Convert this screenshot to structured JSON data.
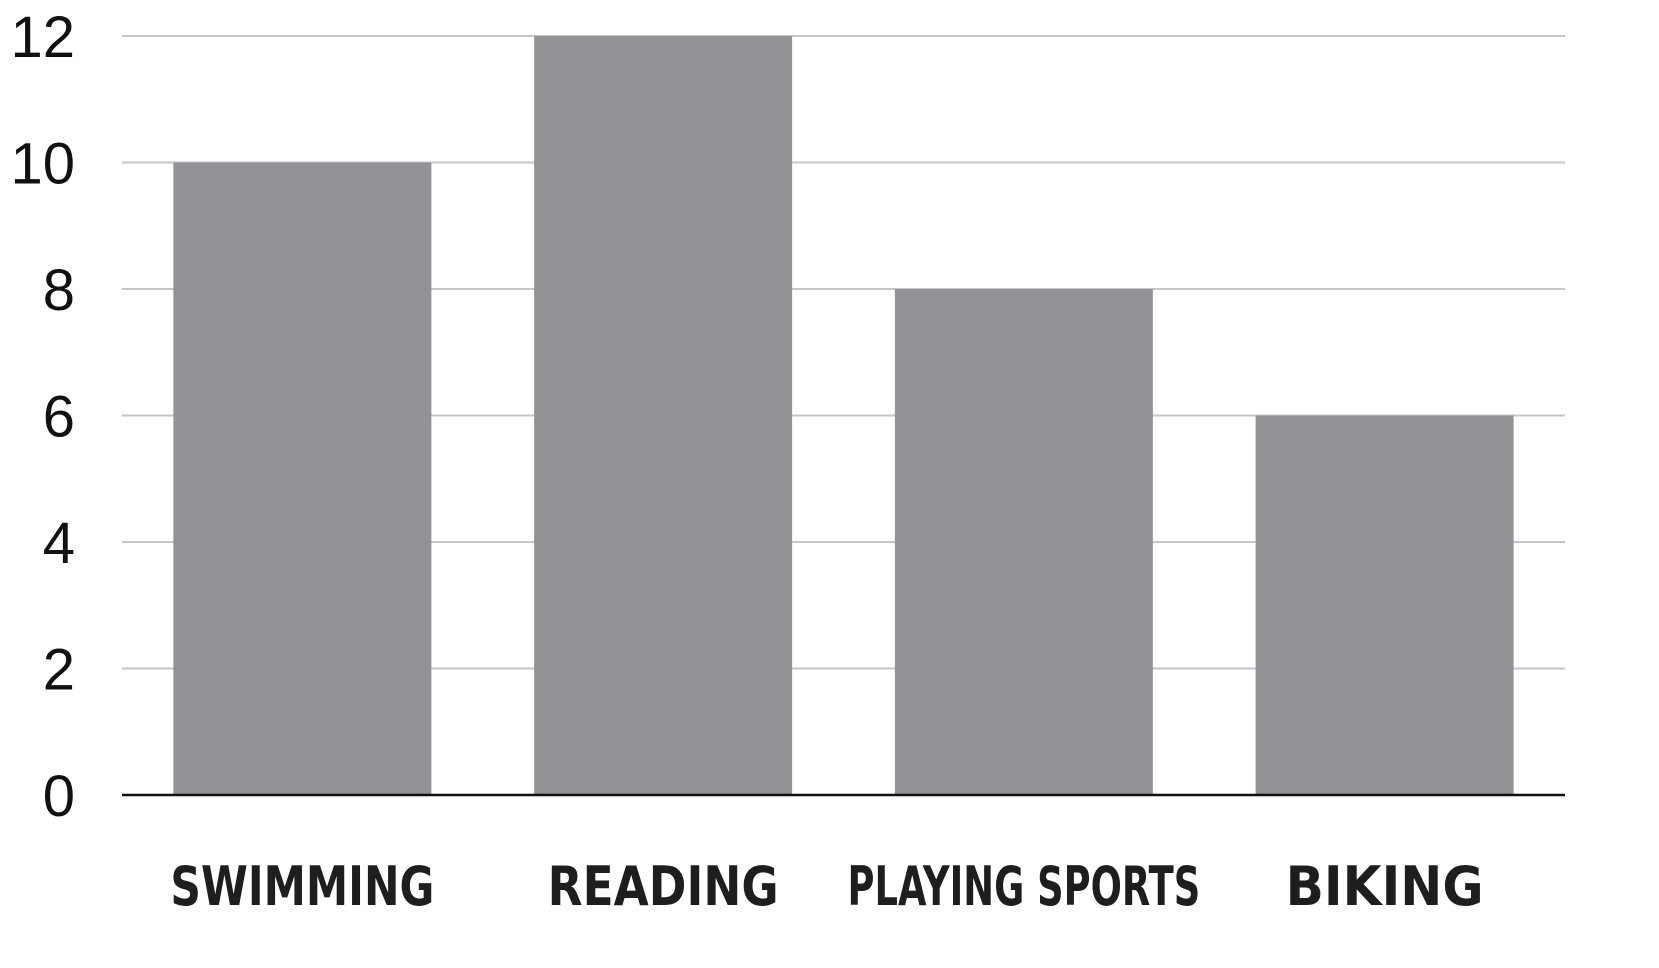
{
  "chart_data": {
    "type": "bar",
    "categories": [
      "SWIMMING",
      "READING",
      "PLAYING SPORTS",
      "BIKING"
    ],
    "values": [
      10,
      12,
      8,
      6
    ],
    "ylim": [
      0,
      12
    ],
    "yticks": [
      0,
      2,
      4,
      6,
      8,
      10,
      12
    ],
    "grid": true,
    "colors": {
      "bar": "#919397",
      "grid": "#c6c6c6",
      "axis": "#111111"
    }
  }
}
